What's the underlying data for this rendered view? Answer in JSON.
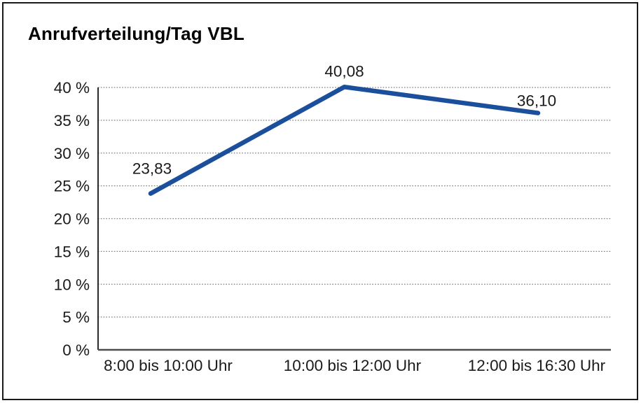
{
  "frame": {
    "background": "#ffffff",
    "border_color": "#1a1a1a"
  },
  "chart_data": {
    "type": "line",
    "title": "Anrufverteilung/Tag VBL",
    "categories": [
      "8:00 bis 10:00 Uhr",
      "10:00 bis 12:00 Uhr",
      "12:00 bis 16:30 Uhr"
    ],
    "values": [
      23.83,
      40.08,
      36.1
    ],
    "value_labels": [
      "23,83",
      "40,08",
      "36,10"
    ],
    "xlabel": "",
    "ylabel": "",
    "ylim": [
      0,
      40
    ],
    "ytick_step": 5,
    "ytick_labels": [
      "0 %",
      "5 %",
      "10 %",
      "15 %",
      "20 %",
      "25 %",
      "30 %",
      "35 %",
      "40 %"
    ],
    "grid": "horizontal-dotted",
    "legend_position": "none",
    "colors": {
      "line": "#1b4f9c",
      "axis_y": "#2b2b2b",
      "axis_x": "#4d4d4d",
      "grid": "#7d7d7d",
      "text": "#1a1a1a",
      "title": "#000000"
    }
  }
}
